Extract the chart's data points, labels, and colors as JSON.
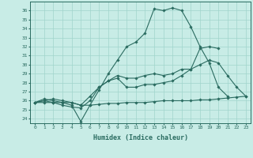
{
  "xlabel": "Humidex (Indice chaleur)",
  "bg_color": "#c8ece6",
  "line_color": "#2a6b60",
  "grid_color": "#a0d4cc",
  "xlim": [
    -0.5,
    23.5
  ],
  "ylim": [
    23.5,
    37.0
  ],
  "xticks": [
    0,
    1,
    2,
    3,
    4,
    5,
    6,
    7,
    8,
    9,
    10,
    11,
    12,
    13,
    14,
    15,
    16,
    17,
    18,
    19,
    20,
    21,
    22,
    23
  ],
  "yticks": [
    24,
    25,
    26,
    27,
    28,
    29,
    30,
    31,
    32,
    33,
    34,
    35,
    36
  ],
  "lines": [
    {
      "x": [
        0,
        1,
        2,
        3,
        4,
        5,
        6,
        7,
        8,
        9,
        10,
        11,
        12,
        13,
        14,
        15,
        16,
        17,
        18,
        19,
        20,
        21,
        22,
        23
      ],
      "y": [
        25.8,
        26.2,
        26.0,
        25.8,
        25.5,
        23.7,
        25.5,
        27.2,
        29.0,
        30.5,
        32.0,
        32.5,
        33.5,
        36.2,
        36.0,
        36.3,
        36.0,
        34.2,
        32.0,
        30.2,
        27.5,
        26.5,
        null,
        null
      ]
    },
    {
      "x": [
        0,
        1,
        2,
        3,
        4,
        5,
        6,
        7,
        8,
        9,
        10,
        11,
        12,
        13,
        14,
        15,
        16,
        17,
        18,
        19,
        20,
        21,
        22,
        23
      ],
      "y": [
        25.8,
        26.0,
        25.8,
        25.5,
        25.3,
        25.2,
        26.0,
        27.5,
        28.2,
        28.8,
        28.5,
        28.5,
        28.8,
        29.0,
        28.8,
        29.0,
        29.5,
        29.5,
        30.0,
        30.5,
        30.2,
        28.8,
        27.5,
        26.5
      ]
    },
    {
      "x": [
        0,
        1,
        2,
        3,
        4,
        5,
        6,
        7,
        8,
        9,
        10,
        11,
        12,
        13,
        14,
        15,
        16,
        17,
        18,
        19,
        20,
        21,
        22,
        23
      ],
      "y": [
        25.8,
        25.8,
        25.8,
        25.8,
        25.8,
        25.5,
        25.5,
        25.6,
        25.7,
        25.7,
        25.8,
        25.8,
        25.8,
        25.9,
        26.0,
        26.0,
        26.0,
        26.0,
        26.1,
        26.1,
        26.2,
        26.3,
        26.4,
        26.5
      ]
    },
    {
      "x": [
        0,
        1,
        2,
        3,
        4,
        5,
        6,
        7,
        8,
        9,
        10,
        11,
        12,
        13,
        14,
        15,
        16,
        17,
        18,
        19,
        20,
        21,
        22,
        23
      ],
      "y": [
        25.8,
        26.0,
        26.2,
        26.0,
        25.8,
        25.5,
        26.5,
        27.5,
        28.2,
        28.5,
        27.5,
        27.5,
        27.8,
        27.8,
        28.0,
        28.2,
        28.8,
        29.5,
        31.8,
        32.0,
        31.8,
        null,
        null,
        null
      ]
    }
  ]
}
